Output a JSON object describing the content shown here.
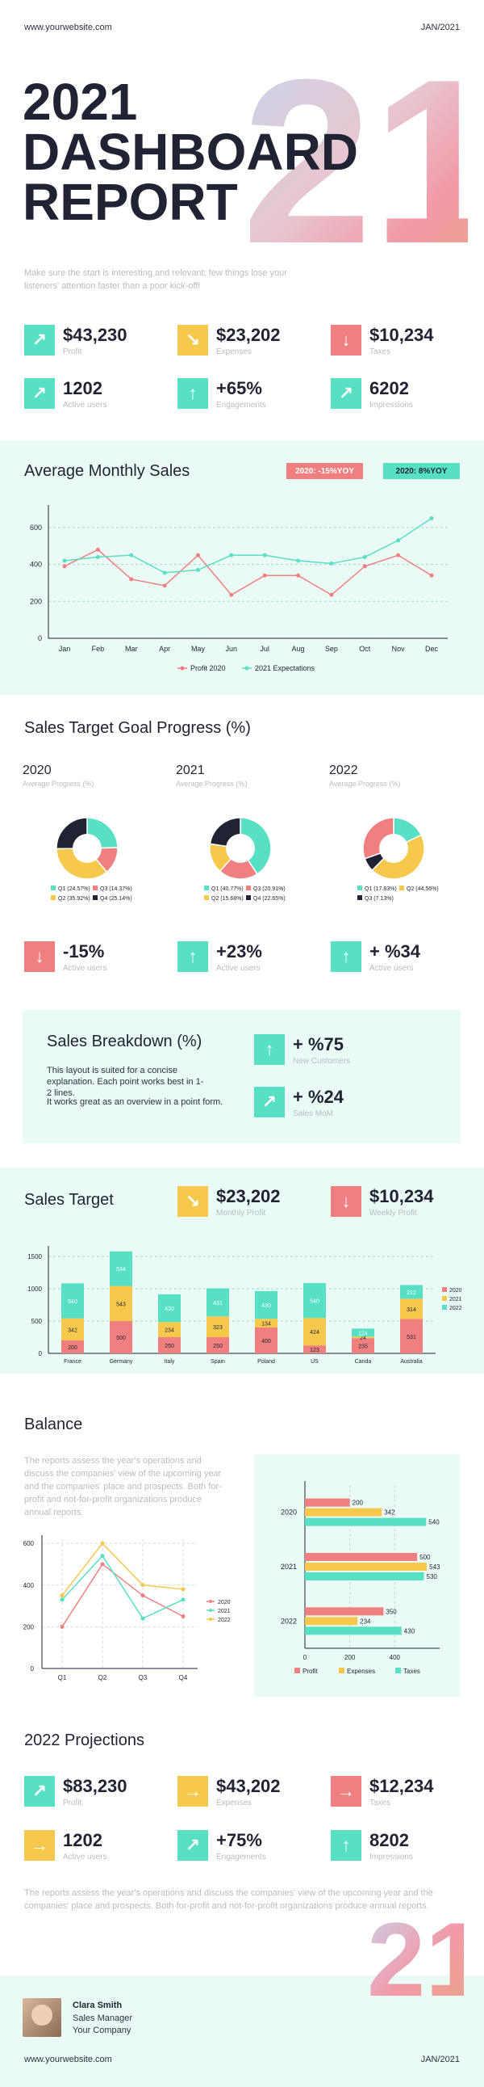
{
  "header": {
    "website": "www.yourwebsite.com",
    "date": "JAN/2021"
  },
  "hero": {
    "title_line1": "2021",
    "title_line2": "DASHBOARD",
    "title_line3": "REPORT",
    "big_number": "21",
    "subtitle": "Make sure the start is interesting and relevant; few things lose your listeners' attention faster than a poor kick-off!"
  },
  "kpis_top": [
    {
      "value": "$43,230",
      "label": "Profit",
      "color": "#57e0c3",
      "arrow": "↗"
    },
    {
      "value": "$23,202",
      "label": "Expenses",
      "color": "#f6c84c",
      "arrow": "↘"
    },
    {
      "value": "$10,234",
      "label": "Taxes",
      "color": "#f08080",
      "arrow": "↓"
    },
    {
      "value": "1202",
      "label": "Active users",
      "color": "#57e0c3",
      "arrow": "↗"
    },
    {
      "value": "+65%",
      "label": "Engagements",
      "color": "#57e0c3",
      "arrow": "↑"
    },
    {
      "value": "6202",
      "label": "Impressions",
      "color": "#57e0c3",
      "arrow": "↗"
    }
  ],
  "monthly_sales": {
    "title": "Average Monthly Sales",
    "badge_2020": "2020: -15%YOY",
    "badge_2021": "2020: 8%YOY",
    "legend": [
      "Profit 2020",
      "2021 Expectations"
    ]
  },
  "sales_goal": {
    "title": "Sales Target Goal Progress (%)",
    "donuts": [
      {
        "year": "2020",
        "sub": "Average Progress (%)",
        "legend": [
          "Q1 (24.57%)",
          "Q3 (14.37%)",
          "Q2 (35.92%)",
          "Q4 (25.14%)"
        ]
      },
      {
        "year": "2021",
        "sub": "Average Progress (%)",
        "legend": [
          "Q1 (40.77%)",
          "Q3 (20.91%)",
          "Q2 (15.68%)",
          "Q4 (22.65%)"
        ]
      },
      {
        "year": "2022",
        "sub": "Average Progress (%)",
        "legend": [
          "Q1 (17.83%)",
          "Q2 (44.56%)",
          "Q3 (7.13%)"
        ]
      }
    ],
    "kpis": [
      {
        "value": "-15%",
        "label": "Active users",
        "color": "#f08080",
        "arrow": "↓"
      },
      {
        "value": "+23%",
        "label": "Active users",
        "color": "#57e0c3",
        "arrow": "↑"
      },
      {
        "value": "+ %34",
        "label": "Active users",
        "color": "#57e0c3",
        "arrow": "↑"
      }
    ]
  },
  "breakdown": {
    "title": "Sales Breakdown (%)",
    "text1": "This layout is suited for a concise explanation. Each point works best in 1-2 lines.",
    "text2": "It works great as an overview in a point form.",
    "kpis": [
      {
        "value": "+ %75",
        "label": "New Customers",
        "color": "#57e0c3",
        "arrow": "↑"
      },
      {
        "value": "+ %24",
        "label": "Sales MoM",
        "color": "#57e0c3",
        "arrow": "↗"
      }
    ]
  },
  "sales_target": {
    "title": "Sales Target",
    "kpis": [
      {
        "value": "$23,202",
        "label": "Monthly Profit",
        "color": "#f6c84c",
        "arrow": "↘"
      },
      {
        "value": "$10,234",
        "label": "Weekly Profit",
        "color": "#f08080",
        "arrow": "↓"
      }
    ],
    "legend": [
      "2020",
      "2021",
      "2022"
    ]
  },
  "balance": {
    "title": "Balance",
    "text": "The reports assess the year's operations and discuss the companies' view of the upcoming year and the companies' place and prospects. Both for-profit and not-for-profit organizations produce annual reports.",
    "line_legend": [
      "2020",
      "2021",
      "2022"
    ],
    "bar_legend": [
      "Profit",
      "Expenses",
      "Taxes"
    ]
  },
  "projections": {
    "title": "2022 Projections",
    "kpis": [
      {
        "value": "$83,230",
        "label": "Profit",
        "color": "#57e0c3",
        "arrow": "↗"
      },
      {
        "value": "$43,202",
        "label": "Expenses",
        "color": "#f6c84c",
        "arrow": "→"
      },
      {
        "value": "$12,234",
        "label": "Taxes",
        "color": "#f08080",
        "arrow": "→"
      },
      {
        "value": "1202",
        "label": "Active users",
        "color": "#f6c84c",
        "arrow": "→"
      },
      {
        "value": "+75%",
        "label": "Engagements",
        "color": "#57e0c3",
        "arrow": "↗"
      },
      {
        "value": "8202",
        "label": "Impressions",
        "color": "#57e0c3",
        "arrow": "↑"
      }
    ],
    "text": "The reports assess the year's operations and discuss the companies' view of the upcoming year and the companies' place and prospects. Both for-profit and not-for-profit organizations produce annual reports."
  },
  "footer": {
    "name": "Clara Smith",
    "role": "Sales Manager",
    "company": "Your Company",
    "website": "www.yourwebsite.com",
    "date": "JAN/2021",
    "big_number": "21"
  },
  "chart_data": [
    {
      "type": "line",
      "title": "Average Monthly Sales",
      "categories": [
        "Jan",
        "Feb",
        "Mar",
        "Apr",
        "May",
        "Jun",
        "Jul",
        "Aug",
        "Sep",
        "Oct",
        "Nov",
        "Dec"
      ],
      "ylim": [
        0,
        700
      ],
      "yticks": [
        "0",
        "200",
        "400",
        "600"
      ],
      "series": [
        {
          "name": "Profit 2020",
          "color": "#f08080",
          "values": [
            390,
            480,
            320,
            285,
            450,
            235,
            340,
            340,
            235,
            390,
            450,
            340
          ]
        },
        {
          "name": "2021 Expectations",
          "color": "#57e0c3",
          "values": [
            420,
            440,
            450,
            355,
            370,
            450,
            450,
            420,
            405,
            440,
            530,
            650
          ]
        }
      ]
    },
    {
      "type": "pie",
      "title": "2020",
      "slices": [
        {
          "label": "Q1",
          "value": 24.57,
          "color": "#57e0c3"
        },
        {
          "label": "Q3",
          "value": 14.37,
          "color": "#f08080"
        },
        {
          "label": "Q2",
          "value": 35.92,
          "color": "#f6c84c"
        },
        {
          "label": "Q4",
          "value": 25.14,
          "color": "#1f2333"
        }
      ]
    },
    {
      "type": "pie",
      "title": "2021",
      "slices": [
        {
          "label": "Q1",
          "value": 40.77,
          "color": "#57e0c3"
        },
        {
          "label": "Q3",
          "value": 20.91,
          "color": "#f08080"
        },
        {
          "label": "Q2",
          "value": 15.68,
          "color": "#f6c84c"
        },
        {
          "label": "Q4",
          "value": 22.65,
          "color": "#1f2333"
        }
      ]
    },
    {
      "type": "pie",
      "title": "2022",
      "slices": [
        {
          "label": "Q1",
          "value": 17.83,
          "color": "#57e0c3"
        },
        {
          "label": "Q2",
          "value": 44.56,
          "color": "#f6c84c"
        },
        {
          "label": "Q3",
          "value": 7.13,
          "color": "#1f2333"
        },
        {
          "label": "",
          "value": 30.48,
          "color": "#f08080"
        }
      ]
    },
    {
      "type": "bar",
      "title": "Sales Target",
      "stacked": true,
      "categories": [
        "France",
        "Germany",
        "Italy",
        "Spain",
        "Poland",
        "US",
        "Canda",
        "Australia"
      ],
      "ylim": [
        0,
        1600
      ],
      "yticks": [
        "0",
        "500",
        "1000",
        "1500"
      ],
      "series": [
        {
          "name": "2020",
          "color": "#f08080",
          "values": [
            200,
            500,
            250,
            250,
            400,
            123,
            235,
            531
          ]
        },
        {
          "name": "2021",
          "color": "#f6c84c",
          "values": [
            342,
            543,
            234,
            323,
            134,
            424,
            24,
            314
          ]
        },
        {
          "name": "2022",
          "color": "#57e0c3",
          "values": [
            540,
            534,
            430,
            431,
            430,
            540,
            124,
            212
          ]
        }
      ]
    },
    {
      "type": "line",
      "title": "Balance",
      "categories": [
        "Q1",
        "Q2",
        "Q3",
        "Q4"
      ],
      "ylim": [
        0,
        620
      ],
      "yticks": [
        "0",
        "200",
        "400",
        "600"
      ],
      "series": [
        {
          "name": "2020",
          "color": "#f08080",
          "values": [
            200,
            500,
            350,
            250
          ]
        },
        {
          "name": "2021",
          "color": "#57e0c3",
          "values": [
            330,
            540,
            240,
            330
          ]
        },
        {
          "name": "2022",
          "color": "#f6c84c",
          "values": [
            350,
            600,
            400,
            380
          ]
        }
      ]
    },
    {
      "type": "bar",
      "orientation": "horizontal",
      "categories": [
        "2020",
        "2021",
        "2022"
      ],
      "xlim": [
        0,
        600
      ],
      "xticks": [
        "0",
        "200",
        "400"
      ],
      "series": [
        {
          "name": "Profit",
          "color": "#f08080",
          "values": [
            200,
            500,
            350
          ]
        },
        {
          "name": "Expenses",
          "color": "#f6c84c",
          "values": [
            342,
            543,
            234
          ]
        },
        {
          "name": "Taxes",
          "color": "#57e0c3",
          "values": [
            540,
            530,
            430
          ]
        }
      ]
    }
  ]
}
